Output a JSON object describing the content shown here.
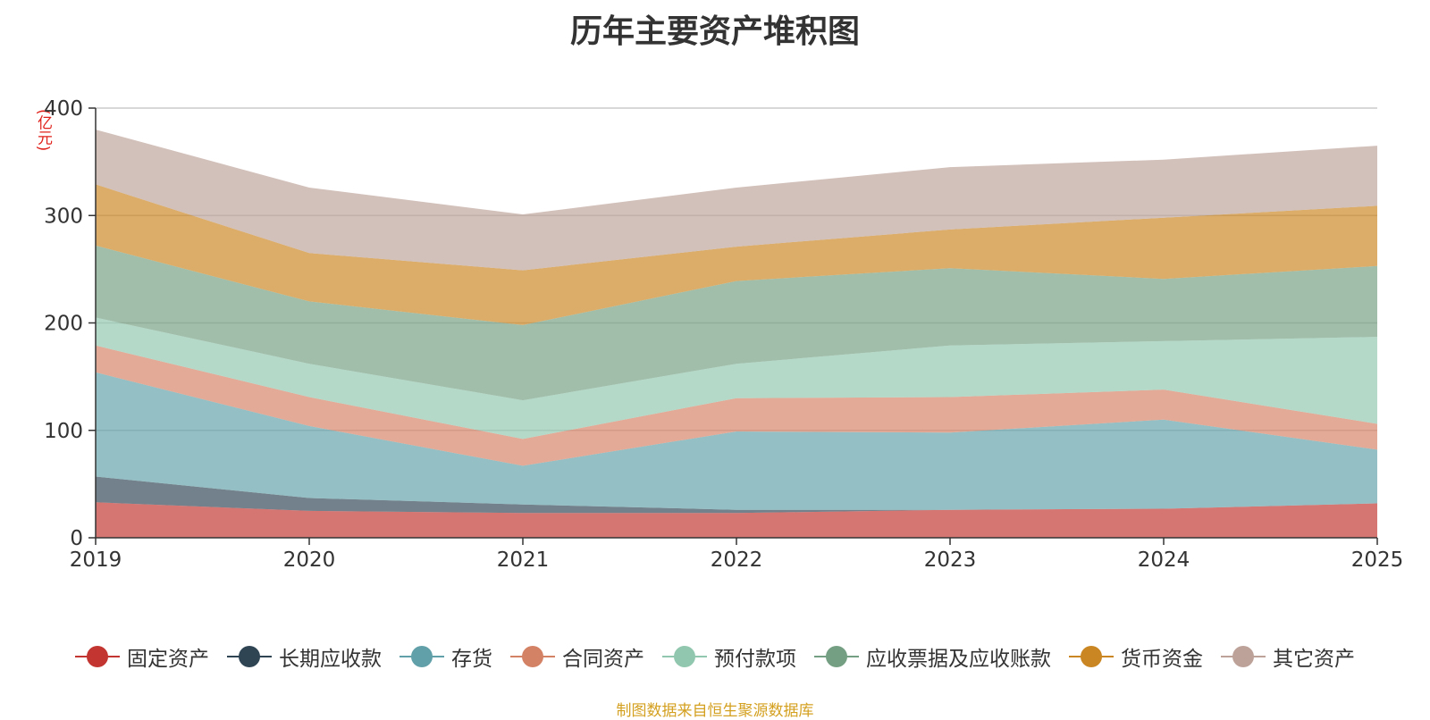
{
  "chart_data": {
    "type": "area",
    "stacked": true,
    "title": "历年主要资产堆积图",
    "ylabel": "(亿元)",
    "xlabel": "",
    "ylim": [
      0,
      400
    ],
    "yticks": [
      "0",
      "100",
      "200",
      "300",
      "400"
    ],
    "categories": [
      "2019",
      "2020",
      "2021",
      "2022",
      "2023",
      "2024",
      "2025"
    ],
    "series": [
      {
        "name": "固定资产",
        "color": "#c23531",
        "values": [
          33,
          25,
          23,
          23,
          26,
          27,
          32
        ]
      },
      {
        "name": "长期应收款",
        "color": "#2f4554",
        "values": [
          24,
          12,
          8,
          3,
          0,
          0,
          0
        ]
      },
      {
        "name": "存货",
        "color": "#61a0a8",
        "values": [
          97,
          67,
          36,
          73,
          72,
          83,
          50
        ]
      },
      {
        "name": "合同资产",
        "color": "#d48265",
        "values": [
          25,
          27,
          25,
          31,
          33,
          28,
          24
        ]
      },
      {
        "name": "预付款项",
        "color": "#91c7ae",
        "values": [
          26,
          31,
          36,
          32,
          48,
          45,
          81
        ]
      },
      {
        "name": "应收票据及应收账款",
        "color": "#749f83",
        "values": [
          67,
          58,
          70,
          77,
          72,
          58,
          66
        ]
      },
      {
        "name": "货币资金",
        "color": "#ca8622",
        "values": [
          57,
          45,
          51,
          32,
          36,
          57,
          56
        ]
      },
      {
        "name": "其它资产",
        "color": "#bda29a",
        "values": [
          51,
          61,
          52,
          55,
          58,
          54,
          56
        ]
      }
    ],
    "legend_position": "bottom",
    "grid": true
  },
  "source_note": "制图数据来自恒生聚源数据库"
}
